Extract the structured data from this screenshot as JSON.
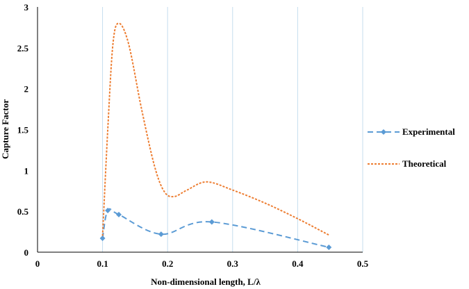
{
  "chart_data": {
    "type": "line",
    "title": "",
    "xlabel": "Non-dimensional  length, L/λ",
    "ylabel": "Capture Factor",
    "xlim": [
      0,
      0.5
    ],
    "ylim": [
      0,
      3
    ],
    "x_ticks": [
      0,
      0.1,
      0.2,
      0.3,
      0.4,
      0.5
    ],
    "x_tick_labels": [
      "0",
      "0.1",
      "0.2",
      "0.3",
      "0.4",
      "0.5"
    ],
    "y_ticks": [
      0,
      0.5,
      1,
      1.5,
      2,
      2.5,
      3
    ],
    "y_tick_labels": [
      "0",
      "0.5",
      "1",
      "1.5",
      "2",
      "2.5",
      "3"
    ],
    "vertical_gridlines": true,
    "horizontal_gridlines": false,
    "legend_position": "right",
    "series": [
      {
        "name": "Experimental",
        "style": "dashed-with-diamond-markers",
        "color": "#5B9BD5",
        "points": [
          {
            "x": 0.1,
            "y": 0.17
          },
          {
            "x": 0.108,
            "y": 0.51
          },
          {
            "x": 0.125,
            "y": 0.46
          },
          {
            "x": 0.19,
            "y": 0.22
          },
          {
            "x": 0.268,
            "y": 0.37
          },
          {
            "x": 0.448,
            "y": 0.06
          }
        ]
      },
      {
        "name": "Theoretical",
        "style": "dotted",
        "color": "#ED7D31",
        "points": [
          {
            "x": 0.1,
            "y": 0.2
          },
          {
            "x": 0.108,
            "y": 1.5
          },
          {
            "x": 0.116,
            "y": 2.55
          },
          {
            "x": 0.125,
            "y": 2.8
          },
          {
            "x": 0.14,
            "y": 2.55
          },
          {
            "x": 0.16,
            "y": 1.75
          },
          {
            "x": 0.18,
            "y": 1.05
          },
          {
            "x": 0.195,
            "y": 0.74
          },
          {
            "x": 0.21,
            "y": 0.68
          },
          {
            "x": 0.23,
            "y": 0.76
          },
          {
            "x": 0.26,
            "y": 0.86
          },
          {
            "x": 0.3,
            "y": 0.76
          },
          {
            "x": 0.35,
            "y": 0.6
          },
          {
            "x": 0.4,
            "y": 0.41
          },
          {
            "x": 0.448,
            "y": 0.21
          }
        ]
      }
    ]
  }
}
